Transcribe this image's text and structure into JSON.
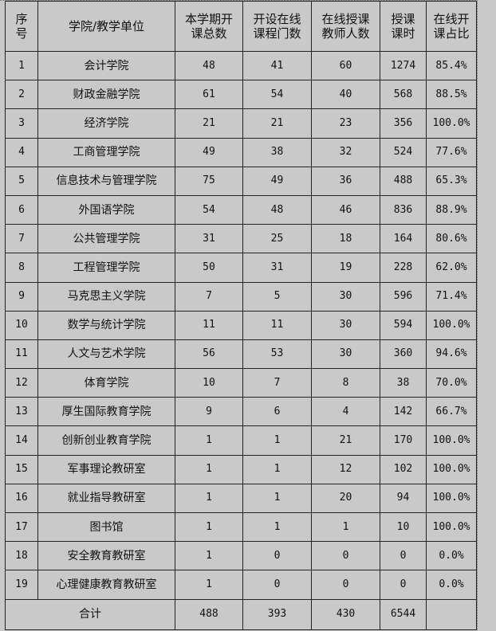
{
  "headers": [
    "序\n号",
    "学院/教学单位",
    "本学期开\n课总数",
    "开设在线\n课程门数",
    "在线授课\n教师人数",
    "授课\n课时",
    "在线开\n课占比"
  ],
  "rows": [
    [
      "1",
      "会计学院",
      "48",
      "41",
      "60",
      "1274",
      "85.4%"
    ],
    [
      "2",
      "财政金融学院",
      "61",
      "54",
      "40",
      "568",
      "88.5%"
    ],
    [
      "3",
      "经济学院",
      "21",
      "21",
      "23",
      "356",
      "100.0%"
    ],
    [
      "4",
      "工商管理学院",
      "49",
      "38",
      "32",
      "524",
      "77.6%"
    ],
    [
      "5",
      "信息技术与管理学院",
      "75",
      "49",
      "36",
      "488",
      "65.3%"
    ],
    [
      "6",
      "外国语学院",
      "54",
      "48",
      "46",
      "836",
      "88.9%"
    ],
    [
      "7",
      "公共管理学院",
      "31",
      "25",
      "18",
      "164",
      "80.6%"
    ],
    [
      "8",
      "工程管理学院",
      "50",
      "31",
      "19",
      "228",
      "62.0%"
    ],
    [
      "9",
      "马克思主义学院",
      "7",
      "5",
      "30",
      "596",
      "71.4%"
    ],
    [
      "10",
      "数学与统计学院",
      "11",
      "11",
      "30",
      "594",
      "100.0%"
    ],
    [
      "11",
      "人文与艺术学院",
      "56",
      "53",
      "30",
      "360",
      "94.6%"
    ],
    [
      "12",
      "体育学院",
      "10",
      "7",
      "8",
      "38",
      "70.0%"
    ],
    [
      "13",
      "厚生国际教育学院",
      "9",
      "6",
      "4",
      "142",
      "66.7%"
    ],
    [
      "14",
      "创新创业教育学院",
      "1",
      "1",
      "21",
      "170",
      "100.0%"
    ],
    [
      "15",
      "军事理论教研室",
      "1",
      "1",
      "12",
      "102",
      "100.0%"
    ],
    [
      "16",
      "就业指导教研室",
      "1",
      "1",
      "20",
      "94",
      "100.0%"
    ],
    [
      "17",
      "图书馆",
      "1",
      "1",
      "1",
      "10",
      "100.0%"
    ],
    [
      "18",
      "安全教育教研室",
      "1",
      "0",
      "0",
      "0",
      "0.0%"
    ],
    [
      "19",
      "心理健康教育教研室",
      "1",
      "0",
      "0",
      "0",
      "0.0%"
    ]
  ],
  "total": {
    "label": "合计",
    "values": [
      "488",
      "393",
      "430",
      "6544",
      ""
    ]
  }
}
